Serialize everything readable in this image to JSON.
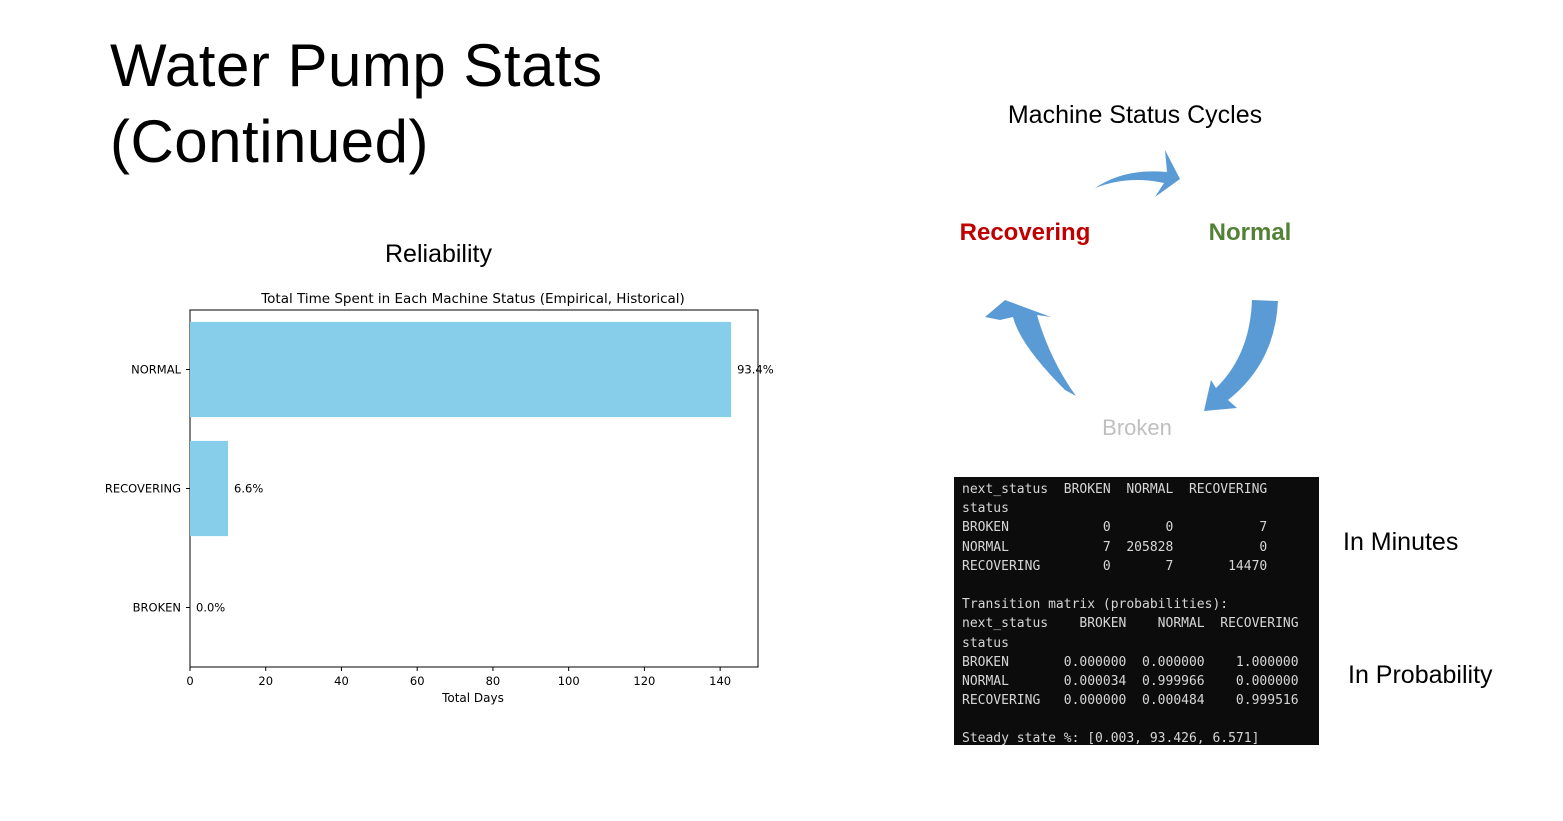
{
  "slide": {
    "title_line1": "Water Pump Stats",
    "title_line2": "(Continued)"
  },
  "reliability": {
    "heading": "Reliability"
  },
  "chart_data": {
    "type": "bar",
    "orientation": "horizontal",
    "title": "Total Time Spent in Each Machine Status (Empirical, Historical)",
    "xlabel": "Total Days",
    "ylabel": "",
    "categories": [
      "NORMAL",
      "RECOVERING",
      "BROKEN"
    ],
    "values": [
      142.9,
      10.05,
      0.005
    ],
    "data_labels": [
      "93.4%",
      "6.6%",
      "0.0%"
    ],
    "xlim": [
      0,
      150
    ],
    "xticks": [
      0,
      20,
      40,
      60,
      80,
      100,
      120,
      140
    ],
    "bar_color": "#87ceeb",
    "grid": false,
    "legend": "none"
  },
  "cycle_diagram": {
    "title": "Machine Status Cycles",
    "arrow_color": "#5b9bd5",
    "nodes": [
      {
        "label": "Normal",
        "color": "#538135"
      },
      {
        "label": "Broken",
        "color": "#bfbfbf"
      },
      {
        "label": "Recovering",
        "color": "#c00000"
      }
    ]
  },
  "console": {
    "lines": [
      "next_status  BROKEN  NORMAL  RECOVERING",
      "status",
      "BROKEN            0       0           7",
      "NORMAL            7  205828           0",
      "RECOVERING        0       7       14470",
      "",
      "Transition matrix (probabilities):",
      "next_status    BROKEN    NORMAL  RECOVERING",
      "status",
      "BROKEN       0.000000  0.000000    1.000000",
      "NORMAL       0.000034  0.999966    0.000000",
      "RECOVERING   0.000000  0.000484    0.999516",
      "",
      "Steady state %: [0.003, 93.426, 6.571]"
    ]
  },
  "side_labels": {
    "minutes": "In Minutes",
    "probability": "In Probability"
  }
}
